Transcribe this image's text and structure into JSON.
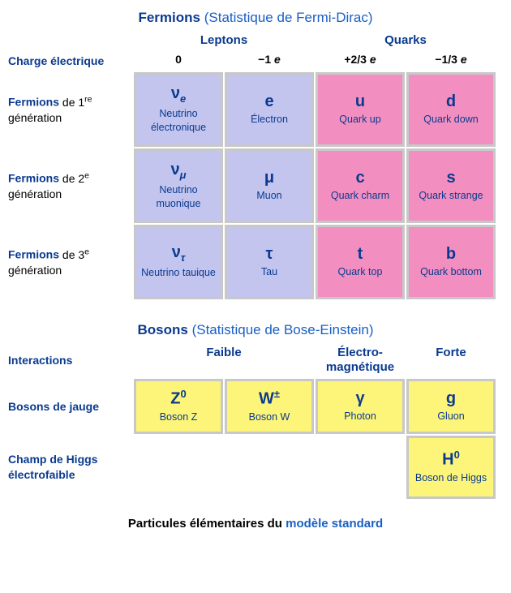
{
  "colors": {
    "lepton_bg": "#c3c5ef",
    "quark_bg": "#f28fc0",
    "boson_bg": "#fdf579",
    "cell_border": "#c8c8c8",
    "text_primary": "#0a3a8f",
    "link": "#1a5fc4",
    "background": "#ffffff"
  },
  "fermions": {
    "title_bold": "Fermions",
    "title_paren": "(Statistique de Fermi-Dirac)",
    "group_headers": {
      "leptons": "Leptons",
      "quarks": "Quarks"
    },
    "charge_label": "Charge électrique",
    "charges": {
      "c0": "0",
      "c1_pre": "−1 ",
      "c1_e": "e",
      "c2_pre": "+2/3 ",
      "c2_e": "e",
      "c3_pre": "−1/3 ",
      "c3_e": "e"
    },
    "rows": [
      {
        "label_bold": "Fermions",
        "label_rest": " de 1",
        "label_sup": "re",
        "label_tail": " génération",
        "cells": [
          {
            "symbol_html": "ν<sub>e</sub>",
            "name": "Neutrino électronique",
            "bg": "lepton_bg"
          },
          {
            "symbol_html": "e",
            "name": "Électron",
            "bg": "lepton_bg"
          },
          {
            "symbol_html": "u",
            "name": "Quark up",
            "bg": "quark_bg"
          },
          {
            "symbol_html": "d",
            "name": "Quark down",
            "bg": "quark_bg"
          }
        ]
      },
      {
        "label_bold": "Fermions",
        "label_rest": " de 2",
        "label_sup": "e",
        "label_tail": " génération",
        "cells": [
          {
            "symbol_html": "ν<sub>μ</sub>",
            "name": "Neutrino muonique",
            "bg": "lepton_bg"
          },
          {
            "symbol_html": "μ",
            "name": "Muon",
            "bg": "lepton_bg"
          },
          {
            "symbol_html": "c",
            "name": "Quark charm",
            "bg": "quark_bg"
          },
          {
            "symbol_html": "s",
            "name": "Quark strange",
            "bg": "quark_bg"
          }
        ]
      },
      {
        "label_bold": "Fermions",
        "label_rest": " de 3",
        "label_sup": "e",
        "label_tail": " génération",
        "cells": [
          {
            "symbol_html": "ν<sub>τ</sub>",
            "name": "Neutrino tauique",
            "bg": "lepton_bg"
          },
          {
            "symbol_html": "τ",
            "name": "Tau",
            "bg": "lepton_bg"
          },
          {
            "symbol_html": "t",
            "name": "Quark top",
            "bg": "quark_bg"
          },
          {
            "symbol_html": "b",
            "name": "Quark bottom",
            "bg": "quark_bg"
          }
        ]
      }
    ]
  },
  "bosons": {
    "title_bold": "Bosons",
    "title_paren": "(Statistique de Bose-Einstein)",
    "interactions_label": "Interactions",
    "interaction_headers": {
      "faible": "Faible",
      "em1": "Électro-",
      "em2": "magnétique",
      "forte": "Forte"
    },
    "gauge_row": {
      "label": "Bosons de jauge",
      "cells": [
        {
          "symbol_html": "Z<sup>0</sup>",
          "name": "Boson Z",
          "bg": "boson_bg"
        },
        {
          "symbol_html": "W<sup>±</sup>",
          "name": "Boson W",
          "bg": "boson_bg"
        },
        {
          "symbol_html": "γ",
          "name": "Photon",
          "bg": "boson_bg"
        },
        {
          "symbol_html": "g",
          "name": "Gluon",
          "bg": "boson_bg"
        }
      ]
    },
    "higgs_row": {
      "label1": "Champ de Higgs",
      "label2": "électrofaible",
      "cell": {
        "symbol_html": "H<sup>0</sup>",
        "name": "Boson de Higgs",
        "bg": "boson_bg"
      }
    }
  },
  "caption": {
    "pre": "Particules élémentaires du ",
    "link": "modèle standard"
  }
}
